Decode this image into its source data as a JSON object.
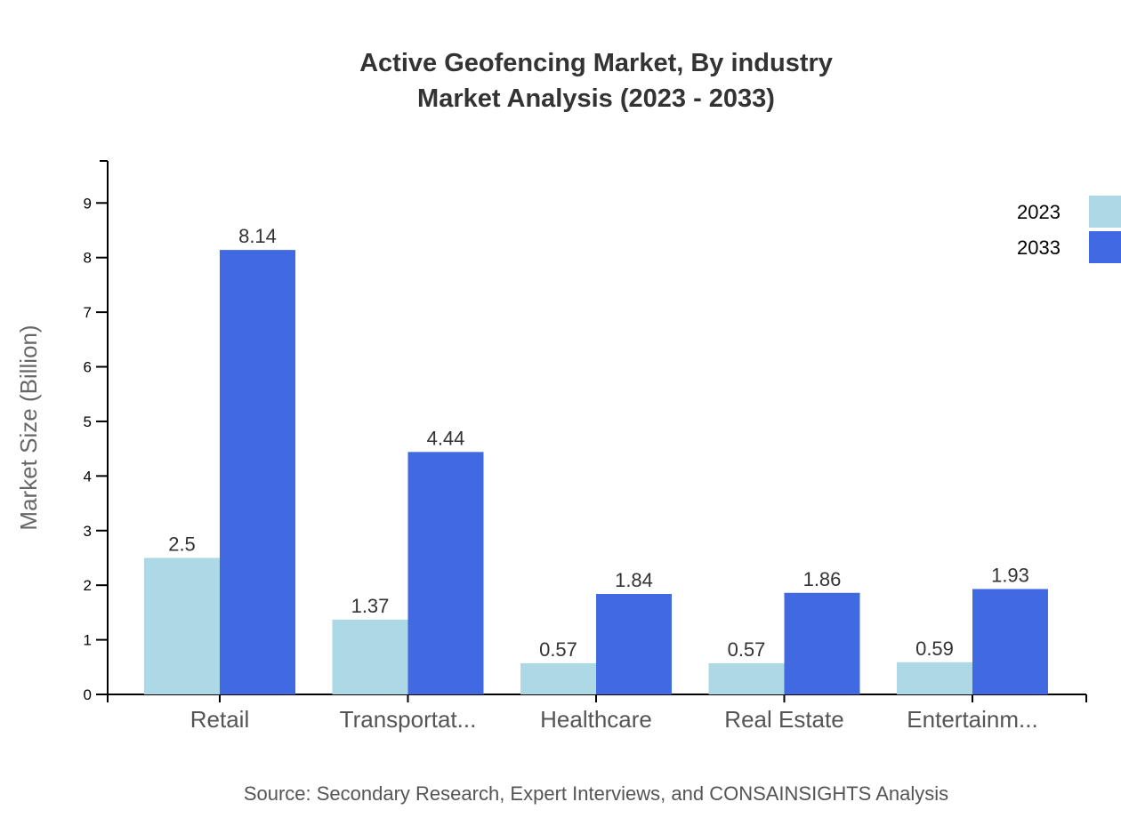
{
  "chart_data": {
    "type": "bar",
    "title": "Active Geofencing Market, By industry",
    "subtitle": "Market Analysis (2023 - 2033)",
    "xlabel": "",
    "ylabel": "Market Size (Billion)",
    "ylim": [
      0,
      9.77
    ],
    "yticks": [
      0,
      1,
      2,
      3,
      4,
      5,
      6,
      7,
      8,
      9
    ],
    "categories": [
      "Retail",
      "Transportat...",
      "Healthcare",
      "Real Estate",
      "Entertainm..."
    ],
    "series": [
      {
        "name": "2023",
        "color": "#ADD8E6",
        "values": [
          2.5,
          1.37,
          0.57,
          0.57,
          0.59
        ]
      },
      {
        "name": "2033",
        "color": "#4169E1",
        "values": [
          8.14,
          4.44,
          1.84,
          1.86,
          1.93
        ]
      }
    ],
    "grid": false,
    "legend_position": "top-right",
    "source": "Source: Secondary Research, Expert Interviews, and CONSAINSIGHTS Analysis"
  }
}
